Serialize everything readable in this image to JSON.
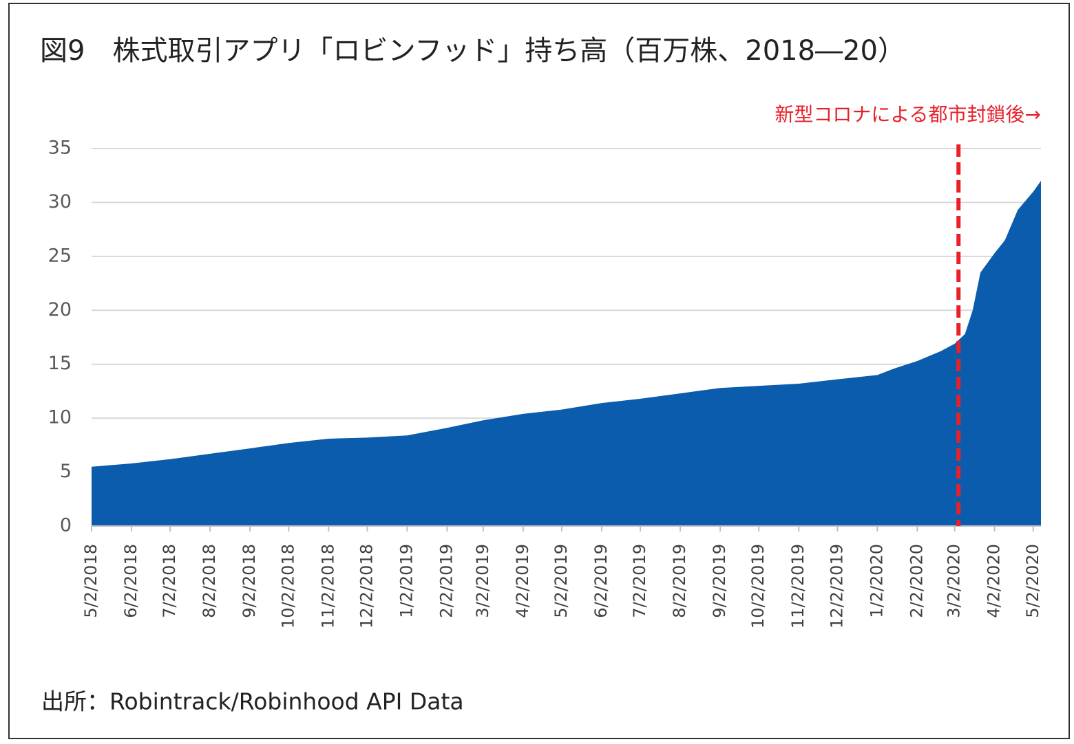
{
  "chart_data": {
    "type": "area",
    "title": "図9　株式取引アプリ「ロビンフッド」持ち高（百万株、2018―20）",
    "annotation": "新型コロナによる都市封鎖後→",
    "source": "出所：Robintrack/Robinhood API Data",
    "color": "#0b5cad",
    "vline": {
      "x": "3/5/2020",
      "color": "#e8202a"
    },
    "x": [
      "5/2/2018",
      "6/2/2018",
      "7/2/2018",
      "8/2/2018",
      "9/2/2018",
      "10/2/2018",
      "11/2/2018",
      "12/2/2018",
      "1/2/2019",
      "2/2/2019",
      "3/2/2019",
      "4/2/2019",
      "5/2/2019",
      "6/2/2019",
      "7/2/2019",
      "8/2/2019",
      "9/2/2019",
      "10/2/2019",
      "11/2/2019",
      "12/2/2019",
      "1/2/2020",
      "1/15/2020",
      "2/2/2020",
      "2/20/2020",
      "3/2/2020",
      "3/10/2020",
      "3/16/2020",
      "3/22/2020",
      "4/2/2020",
      "4/10/2020",
      "4/20/2020",
      "5/2/2020",
      "5/8/2020"
    ],
    "values": [
      5.5,
      5.8,
      6.2,
      6.7,
      7.2,
      7.7,
      8.1,
      8.2,
      8.4,
      9.1,
      9.8,
      10.4,
      10.8,
      11.4,
      11.8,
      12.3,
      12.8,
      13.0,
      13.2,
      13.6,
      14.0,
      14.6,
      15.3,
      16.2,
      16.9,
      17.8,
      20,
      23.5,
      25.3,
      26.5,
      29.3,
      31.0,
      32.0
    ],
    "xlim": [
      "5/2/2018",
      "5/8/2020"
    ],
    "xticks": [
      "5/2/2018",
      "6/2/2018",
      "7/2/2018",
      "8/2/2018",
      "9/2/2018",
      "10/2/2018",
      "11/2/2018",
      "12/2/2018",
      "1/2/2019",
      "2/2/2019",
      "3/2/2019",
      "4/2/2019",
      "5/2/2019",
      "6/2/2019",
      "7/2/2019",
      "8/2/2019",
      "9/2/2019",
      "10/2/2019",
      "11/2/2019",
      "12/2/2019",
      "1/2/2020",
      "2/2/2020",
      "3/2/2020",
      "4/2/2020",
      "5/2/2020"
    ],
    "ylim": [
      0,
      35
    ],
    "yticks": [
      0,
      5,
      10,
      15,
      20,
      25,
      30,
      35
    ],
    "grid": true
  }
}
